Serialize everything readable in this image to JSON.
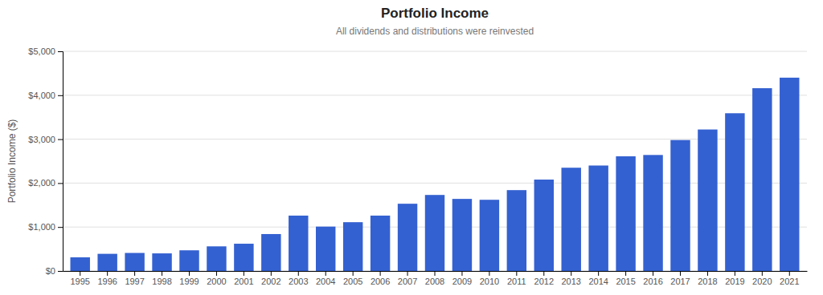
{
  "chart_data": {
    "type": "bar",
    "title": "Portfolio Income",
    "subtitle": "All dividends and distributions were reinvested",
    "y_label": "Portfolio Income ($)",
    "categories": [
      "1995",
      "1996",
      "1997",
      "1998",
      "1999",
      "2000",
      "2001",
      "2002",
      "2003",
      "2004",
      "2005",
      "2006",
      "2007",
      "2008",
      "2009",
      "2010",
      "2011",
      "2012",
      "2013",
      "2014",
      "2015",
      "2016",
      "2017",
      "2018",
      "2019",
      "2020",
      "2021"
    ],
    "values": [
      310,
      390,
      410,
      400,
      470,
      560,
      620,
      840,
      1260,
      1010,
      1110,
      1260,
      1530,
      1730,
      1640,
      1620,
      1840,
      2080,
      2350,
      2400,
      2610,
      2640,
      2980,
      3220,
      3590,
      4160,
      4400
    ],
    "color": "#3461d1",
    "ylim": [
      0,
      5000
    ],
    "yticks": [
      {
        "value": 0,
        "label": "$0"
      },
      {
        "value": 1000,
        "label": "$1,000"
      },
      {
        "value": 2000,
        "label": "$2,000"
      },
      {
        "value": 3000,
        "label": "$3,000"
      },
      {
        "value": 4000,
        "label": "$4,000"
      },
      {
        "value": 5000,
        "label": "$5,000"
      }
    ],
    "grid": true
  }
}
